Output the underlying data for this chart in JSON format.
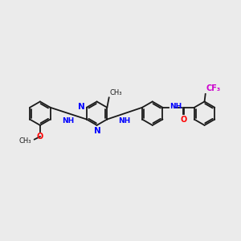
{
  "bg_color": "#ebebeb",
  "bond_color": "#1a1a1a",
  "nitrogen_color": "#0000ff",
  "oxygen_color": "#ff0000",
  "fluorine_color": "#cc00cc",
  "lw": 1.3,
  "font_size": 6.5,
  "fig_size": [
    3.0,
    3.0
  ],
  "dpi": 100,
  "xlim": [
    0,
    10
  ],
  "ylim": [
    0,
    10
  ]
}
